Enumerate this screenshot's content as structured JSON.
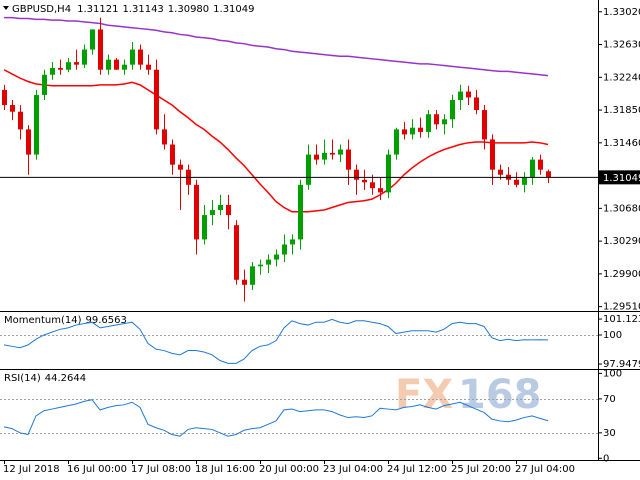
{
  "chart_data": [
    {
      "type": "candlestick",
      "title": "GBPUSD,H4",
      "ohlc_labels": [
        "1.31121",
        "1.31143",
        "1.30980",
        "1.31049"
      ],
      "categories": [
        "12 Jul 2018",
        null,
        null,
        null,
        null,
        null,
        null,
        null,
        "16 Jul 00:00",
        null,
        null,
        null,
        null,
        null,
        null,
        null,
        "17 Jul 08:00",
        null,
        null,
        null,
        null,
        null,
        null,
        null,
        "18 Jul 16:00",
        null,
        null,
        null,
        null,
        null,
        null,
        null,
        "20 Jul 00:00",
        null,
        null,
        null,
        null,
        null,
        null,
        null,
        "23 Jul 04:00",
        null,
        null,
        null,
        null,
        null,
        null,
        null,
        "24 Jul 12:00",
        null,
        null,
        null,
        null,
        null,
        null,
        null,
        "25 Jul 20:00",
        null,
        null,
        null,
        null,
        null,
        null,
        null,
        "27 Jul 04:00",
        null,
        null,
        null,
        null
      ],
      "open": [
        1.3209,
        1.3191,
        1.3183,
        1.3162,
        1.3132,
        1.3203,
        1.3227,
        1.3235,
        1.3233,
        1.3242,
        1.3239,
        1.3257,
        1.3281,
        1.3233,
        1.3245,
        1.3233,
        1.3239,
        1.3257,
        1.3239,
        1.3233,
        1.3162,
        1.3144,
        1.312,
        1.3114,
        1.3096,
        1.3031,
        1.306,
        1.3066,
        1.3072,
        1.3048,
        1.2983,
        1.2977,
        1.2999,
        1.3001,
        1.3007,
        1.3013,
        1.3025,
        1.3031,
        1.3096,
        1.3132,
        1.3126,
        1.3134,
        1.3132,
        1.3138,
        1.3114,
        1.3102,
        1.3099,
        1.3092,
        1.3087,
        1.3132,
        1.3162,
        1.3156,
        1.3164,
        1.3159,
        1.318,
        1.3168,
        1.3174,
        1.3197,
        1.3207,
        1.32,
        1.3185,
        1.315,
        1.3114,
        1.3108,
        1.3102,
        1.3096,
        1.3105,
        1.3126,
        1.31121
      ],
      "high": [
        1.3215,
        1.3197,
        1.3191,
        1.3167,
        1.3209,
        1.3233,
        1.3242,
        1.3245,
        1.3247,
        1.3257,
        1.3263,
        1.3281,
        1.3295,
        1.3251,
        1.3247,
        1.3245,
        1.3266,
        1.3263,
        1.3251,
        1.3245,
        1.318,
        1.315,
        1.3126,
        1.312,
        1.3102,
        1.3072,
        1.3078,
        1.3084,
        1.3084,
        1.3054,
        1.2995,
        1.3004,
        1.3007,
        1.3013,
        1.3019,
        1.3037,
        1.3037,
        1.3102,
        1.3144,
        1.3144,
        1.315,
        1.315,
        1.3144,
        1.315,
        1.312,
        1.3114,
        1.3108,
        1.3105,
        1.3138,
        1.3164,
        1.3171,
        1.3174,
        1.3176,
        1.3185,
        1.3185,
        1.318,
        1.3203,
        1.3215,
        1.3214,
        1.3209,
        1.3191,
        1.3156,
        1.312,
        1.3117,
        1.3111,
        1.3111,
        1.3129,
        1.3132,
        1.31143
      ],
      "low": [
        1.3185,
        1.3173,
        1.315,
        1.3108,
        1.3126,
        1.3197,
        1.3221,
        1.3227,
        1.323,
        1.3233,
        1.3235,
        1.3251,
        1.3227,
        1.3227,
        1.3233,
        1.3227,
        1.3233,
        1.3233,
        1.3227,
        1.3156,
        1.3138,
        1.3108,
        1.3066,
        1.3084,
        1.3013,
        1.3025,
        1.3048,
        1.306,
        1.3043,
        1.2977,
        1.2957,
        1.2971,
        1.2989,
        1.2991,
        1.2999,
        1.3004,
        1.3013,
        1.3019,
        1.309,
        1.312,
        1.312,
        1.3126,
        1.3123,
        1.3096,
        1.3084,
        1.309,
        1.3084,
        1.3078,
        1.308,
        1.3126,
        1.315,
        1.315,
        1.3152,
        1.3152,
        1.3162,
        1.3156,
        1.3164,
        1.3185,
        1.3191,
        1.318,
        1.3138,
        1.3096,
        1.3102,
        1.3096,
        1.3093,
        1.3087,
        1.3096,
        1.3108,
        1.3098
      ],
      "close": [
        1.3191,
        1.3183,
        1.3162,
        1.3132,
        1.3203,
        1.3227,
        1.3235,
        1.3233,
        1.3242,
        1.3239,
        1.3257,
        1.3281,
        1.3233,
        1.3245,
        1.3233,
        1.3239,
        1.3257,
        1.3239,
        1.3233,
        1.3162,
        1.3144,
        1.312,
        1.3114,
        1.3096,
        1.3031,
        1.306,
        1.3066,
        1.3072,
        1.306,
        1.2983,
        1.2977,
        1.2999,
        1.3001,
        1.3007,
        1.3013,
        1.3025,
        1.3031,
        1.3096,
        1.3132,
        1.3126,
        1.3134,
        1.3132,
        1.3138,
        1.3114,
        1.3102,
        1.3099,
        1.3092,
        1.3087,
        1.3132,
        1.3162,
        1.3156,
        1.3164,
        1.3159,
        1.318,
        1.3168,
        1.3174,
        1.3197,
        1.3207,
        1.32,
        1.3185,
        1.315,
        1.3114,
        1.3108,
        1.3102,
        1.3096,
        1.3105,
        1.3126,
        1.3114,
        1.31049
      ],
      "bull_color": "#00a000",
      "bear_color": "#e00000",
      "series": [
        {
          "color": "#ff0000",
          "values": [
            1.3233,
            1.3228,
            1.3223,
            1.3219,
            1.3216,
            1.3215,
            1.3214,
            1.3214,
            1.3214,
            1.3214,
            1.3214,
            1.3214,
            1.3215,
            1.3215,
            1.3215,
            1.3216,
            1.3218,
            1.3215,
            1.3209,
            1.3203,
            1.3197,
            1.3191,
            1.3183,
            1.3176,
            1.3168,
            1.3162,
            1.3154,
            1.3147,
            1.3138,
            1.3128,
            1.3119,
            1.3108,
            1.3097,
            1.3087,
            1.3076,
            1.3069,
            1.3064,
            1.3064,
            1.3064,
            1.3065,
            1.3066,
            1.3069,
            1.3072,
            1.3075,
            1.3076,
            1.3077,
            1.3079,
            1.3084,
            1.309,
            1.3098,
            1.3108,
            1.3116,
            1.3123,
            1.3129,
            1.3134,
            1.3138,
            1.3141,
            1.3144,
            1.3146,
            1.3147,
            1.3147,
            1.3146,
            1.3146,
            1.3146,
            1.3146,
            1.3146,
            1.3147,
            1.3146,
            1.3144
          ]
        },
        {
          "color": "#9932cc",
          "values": [
            1.3295,
            1.3295,
            1.3294,
            1.3294,
            1.3293,
            1.3293,
            1.3292,
            1.3292,
            1.3291,
            1.3291,
            1.329,
            1.3289,
            1.3288,
            1.3286,
            1.3285,
            1.3284,
            1.3283,
            1.3282,
            1.3281,
            1.328,
            1.3278,
            1.3277,
            1.3275,
            1.3274,
            1.3272,
            1.3271,
            1.327,
            1.3268,
            1.3267,
            1.3265,
            1.3264,
            1.3262,
            1.3261,
            1.326,
            1.3258,
            1.3257,
            1.3255,
            1.3254,
            1.3253,
            1.3252,
            1.3251,
            1.325,
            1.3249,
            1.3249,
            1.3248,
            1.3247,
            1.3246,
            1.3245,
            1.3244,
            1.3243,
            1.3242,
            1.3241,
            1.324,
            1.324,
            1.3239,
            1.3238,
            1.3237,
            1.3236,
            1.3235,
            1.3234,
            1.3233,
            1.3232,
            1.3231,
            1.3231,
            1.323,
            1.3229,
            1.3228,
            1.3227,
            1.3226
          ]
        }
      ],
      "ylim": [
        1.2947,
        1.3316
      ],
      "yticks": [
        {
          "value": 1.3302,
          "label": "1.33020"
        },
        {
          "value": 1.3263,
          "label": "1.32630"
        },
        {
          "value": 1.3224,
          "label": "1.32240"
        },
        {
          "value": 1.3185,
          "label": "1.31850"
        },
        {
          "value": 1.3146,
          "label": "1.31460"
        },
        {
          "value": 1.3068,
          "label": "1.30680"
        },
        {
          "value": 1.3029,
          "label": "1.30290"
        },
        {
          "value": 1.299,
          "label": "1.29900"
        },
        {
          "value": 1.2951,
          "label": "1.29510"
        }
      ],
      "last_price_line": true
    },
    {
      "type": "line",
      "title": "Momentum(14)",
      "series": [
        {
          "color": "#1e78d8",
          "values": [
            99.3,
            99.2,
            99.1,
            99.3,
            99.7,
            100.0,
            100.2,
            100.4,
            100.5,
            100.7,
            100.8,
            100.9,
            100.5,
            100.6,
            100.7,
            100.8,
            100.9,
            100.4,
            99.4,
            99.0,
            98.9,
            98.7,
            98.6,
            98.9,
            98.9,
            98.8,
            98.6,
            98.2,
            98.0,
            98.0,
            98.3,
            98.9,
            99.2,
            99.3,
            99.6,
            100.5,
            101.0,
            100.8,
            100.7,
            100.9,
            100.9,
            101.1,
            100.9,
            100.8,
            101.0,
            101.0,
            100.9,
            100.8,
            100.6,
            100.1,
            100.2,
            100.3,
            100.3,
            100.3,
            100.2,
            100.4,
            100.8,
            100.9,
            100.8,
            100.8,
            100.6,
            99.8,
            99.6,
            99.7,
            99.6,
            99.66,
            99.65,
            99.66,
            99.6563
          ]
        }
      ],
      "ylim": [
        97.67,
        101.55
      ],
      "yticks": [
        101.1232,
        100,
        97.9479
      ],
      "levels": [
        100
      ]
    },
    {
      "type": "line",
      "title": "RSI(14)",
      "series": [
        {
          "color": "#1e78d8",
          "values": [
            37,
            35,
            30,
            28,
            50,
            56,
            58,
            60,
            62,
            64,
            67,
            69,
            57,
            60,
            62,
            63,
            66,
            60,
            40,
            36,
            33,
            28,
            26,
            34,
            36,
            35,
            34,
            30,
            26,
            28,
            33,
            35,
            36,
            40,
            44,
            57,
            58,
            55,
            56,
            57,
            57,
            55,
            51,
            48,
            49,
            48,
            50,
            59,
            58,
            57,
            60,
            61,
            63,
            60,
            58,
            62,
            64,
            66,
            62,
            58,
            54,
            46,
            44,
            43,
            45,
            48,
            50,
            47,
            44.2644
          ]
        }
      ],
      "ylim": [
        -2,
        104
      ],
      "yticks": [
        100,
        70,
        30,
        0
      ],
      "levels": [
        70,
        30
      ]
    }
  ],
  "watermark": [
    "FX",
    "168"
  ]
}
